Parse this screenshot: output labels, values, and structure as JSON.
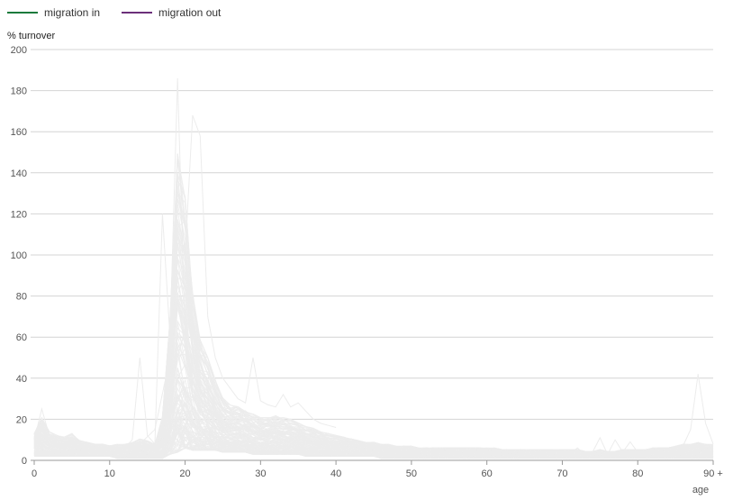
{
  "chart_data": {
    "type": "line",
    "title": "",
    "ylabel": "% turnover",
    "xlabel": "age",
    "xlim": [
      0,
      90
    ],
    "ylim": [
      0,
      200
    ],
    "x_ticks": [
      {
        "value": 0,
        "label": "0"
      },
      {
        "value": 10,
        "label": "10"
      },
      {
        "value": 20,
        "label": "20"
      },
      {
        "value": 30,
        "label": "30"
      },
      {
        "value": 40,
        "label": "40"
      },
      {
        "value": 50,
        "label": "50"
      },
      {
        "value": 60,
        "label": "60"
      },
      {
        "value": 70,
        "label": "70"
      },
      {
        "value": 80,
        "label": "80"
      },
      {
        "value": 90,
        "label": "90 +"
      }
    ],
    "y_ticks": [
      0,
      20,
      40,
      60,
      80,
      100,
      120,
      140,
      160,
      180,
      200
    ],
    "grid": "horizontal",
    "legend_position": "top-left",
    "legend": [
      {
        "label": "migration in",
        "color": "#1a7a3c"
      },
      {
        "label": "migration out",
        "color": "#6b2f7a"
      }
    ],
    "background_series_color": "#ececec",
    "ages": [
      0,
      1,
      2,
      3,
      4,
      5,
      6,
      7,
      8,
      9,
      10,
      11,
      12,
      13,
      14,
      15,
      16,
      17,
      18,
      19,
      20,
      21,
      22,
      23,
      24,
      25,
      26,
      27,
      28,
      29,
      30,
      31,
      32,
      33,
      34,
      35,
      36,
      37,
      38,
      39,
      40,
      41,
      42,
      43,
      44,
      45,
      46,
      47,
      48,
      49,
      50,
      51,
      52,
      53,
      54,
      55,
      56,
      57,
      58,
      59,
      60,
      61,
      62,
      63,
      64,
      65,
      66,
      67,
      68,
      69,
      70,
      71,
      72,
      73,
      74,
      75,
      76,
      77,
      78,
      79,
      80,
      81,
      82,
      83,
      84,
      85,
      86,
      87,
      88,
      89,
      90
    ],
    "envelope_upper": [
      15,
      24,
      16,
      14,
      13,
      15,
      11,
      10,
      9,
      9,
      8,
      9,
      9,
      10,
      12,
      11,
      9,
      25,
      80,
      175,
      150,
      95,
      68,
      58,
      45,
      35,
      31,
      30,
      28,
      26,
      24,
      24,
      25,
      24,
      23,
      21,
      19,
      18,
      16,
      15,
      14,
      13,
      12,
      11,
      10,
      10,
      9,
      9,
      8,
      8,
      8,
      7,
      7,
      7,
      7,
      7,
      7,
      7,
      7,
      7,
      7,
      7,
      6,
      6,
      6,
      6,
      6,
      6,
      6,
      6,
      6,
      6,
      6,
      5,
      5,
      6,
      5,
      5,
      6,
      6,
      6,
      6,
      7,
      7,
      7,
      8,
      9,
      9,
      10,
      9,
      9
    ],
    "envelope_lower": [
      2,
      2,
      2,
      2,
      2,
      2,
      2,
      2,
      2,
      2,
      2,
      1,
      1,
      1,
      1,
      1,
      1,
      1,
      3,
      4,
      6,
      5,
      5,
      5,
      5,
      4,
      4,
      4,
      4,
      3,
      3,
      3,
      3,
      3,
      3,
      3,
      2,
      2,
      2,
      2,
      2,
      2,
      2,
      2,
      2,
      2,
      1,
      1,
      1,
      1,
      1,
      1,
      1,
      1,
      1,
      1,
      1,
      1,
      1,
      1,
      1,
      1,
      1,
      1,
      1,
      1,
      1,
      1,
      1,
      1,
      1,
      1,
      1,
      1,
      1,
      1,
      1,
      1,
      1,
      1,
      1,
      1,
      1,
      1,
      1,
      1,
      1,
      1,
      1,
      1,
      1
    ],
    "outlier_series": [
      {
        "x": [
          0,
          1,
          2,
          3,
          4,
          5,
          6,
          7,
          8,
          9,
          10,
          11,
          12,
          13,
          14,
          15,
          16,
          17,
          18,
          19,
          20,
          21,
          22,
          23,
          24,
          25
        ],
        "y": [
          10,
          25,
          12,
          10,
          9,
          8,
          7,
          7,
          6,
          6,
          6,
          6,
          6,
          10,
          50,
          12,
          8,
          120,
          60,
          186,
          60,
          40,
          30,
          25,
          22,
          20
        ]
      },
      {
        "x": [
          10,
          12,
          14,
          16,
          18,
          19,
          20,
          21,
          22,
          23,
          24,
          25,
          26,
          27,
          28,
          29,
          30,
          31,
          32,
          33,
          34,
          35,
          36,
          37,
          38,
          39,
          40
        ],
        "y": [
          5,
          6,
          8,
          15,
          50,
          140,
          100,
          168,
          158,
          70,
          50,
          40,
          35,
          30,
          28,
          50,
          29,
          27,
          26,
          32,
          26,
          28,
          24,
          20,
          18,
          17,
          16
        ]
      },
      {
        "x": [
          80,
          82,
          84,
          85,
          86,
          87,
          88,
          89,
          90
        ],
        "y": [
          4,
          5,
          6,
          6,
          7,
          15,
          42,
          18,
          8
        ]
      },
      {
        "x": [
          70,
          71,
          72,
          73,
          74,
          75,
          76,
          77,
          78,
          79,
          80
        ],
        "y": [
          4,
          3,
          6,
          3,
          4,
          11,
          3,
          10,
          4,
          9,
          4
        ]
      }
    ],
    "series_count": 150
  }
}
